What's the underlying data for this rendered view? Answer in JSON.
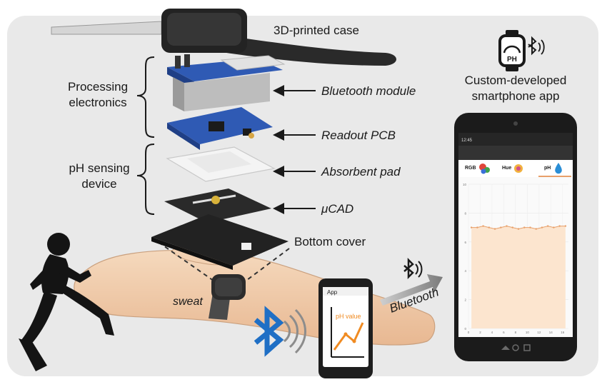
{
  "labels": {
    "case": "3D-printed case",
    "processing_1": "Processing",
    "processing_2": "electronics",
    "bluetooth_module": "Bluetooth module",
    "readout_pcb": "Readout PCB",
    "ph_sensing_1": "pH sensing",
    "ph_sensing_2": "device",
    "absorbent_pad": "Absorbent pad",
    "ucad": "μCAD",
    "bottom_cover": "Bottom cover",
    "sweat": "sweat",
    "bluetooth": "Bluetooth",
    "app_1": "Custom-developed",
    "app_2": "smartphone app"
  },
  "watch_icon": {
    "text": "PH"
  },
  "small_phone": {
    "title": "App",
    "chart_label": "pH value"
  },
  "large_phone": {
    "status_time": "12:45",
    "tabs": [
      {
        "label": "RGB"
      },
      {
        "label": "Hue"
      },
      {
        "label": "pH"
      }
    ],
    "chart_data": {
      "type": "area",
      "y_ticks": [
        "10",
        "8",
        "6",
        "4",
        "2",
        "0"
      ],
      "x_ticks": [
        "0",
        "2",
        "4",
        "6",
        "8",
        "10",
        "12",
        "14",
        "16"
      ],
      "ylim": [
        0,
        10
      ],
      "xlim": [
        0,
        17
      ],
      "series": [
        {
          "x": [
            0.5,
            1.5,
            2.5,
            3.5,
            4.5,
            5.5,
            6.5,
            7.5,
            8.5,
            9.5,
            10.5,
            11.5,
            12.5,
            13.5,
            14.5,
            15.5,
            16.5
          ],
          "values": [
            7.0,
            7.0,
            7.1,
            7.0,
            6.9,
            7.0,
            7.1,
            7.0,
            6.9,
            7.0,
            7.0,
            6.9,
            7.0,
            7.1,
            7.0,
            7.1,
            7.1
          ]
        }
      ],
      "colors": {
        "fill": "#fce5cf",
        "line": "#e8a06a"
      }
    }
  }
}
